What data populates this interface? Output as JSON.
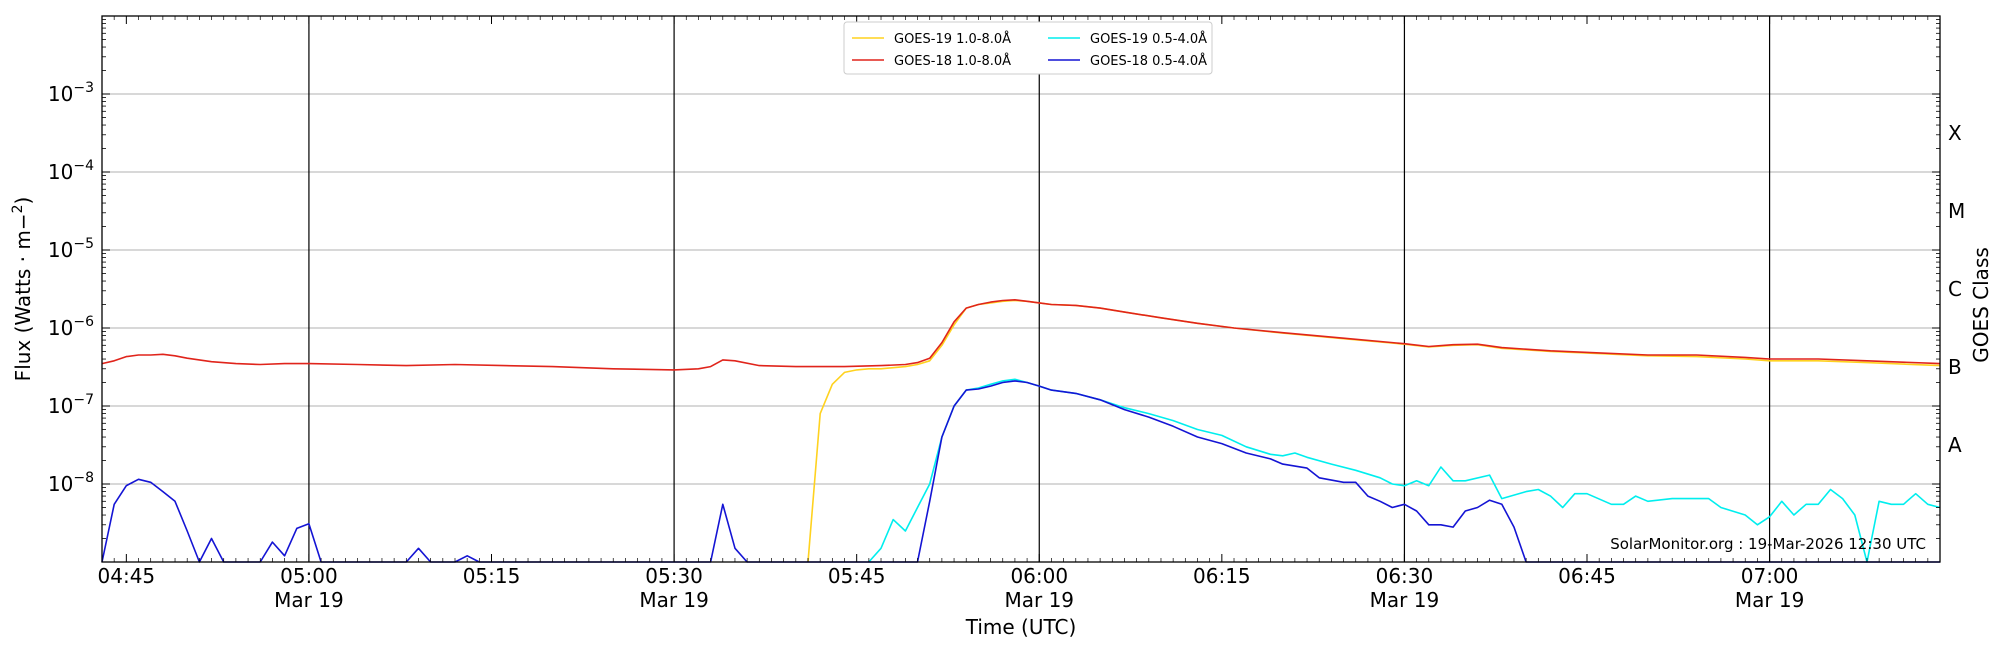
{
  "chart_data": {
    "type": "line",
    "xlabel": "Time (UTC)",
    "ylabel": "Flux (Watts · m⁻²)",
    "ylabel_right": "GOES Class",
    "yscale": "log",
    "xlim": [
      "04:43",
      "07:14"
    ],
    "ylim": [
      1e-09,
      0.01
    ],
    "grid": "horizontal",
    "legend_position": "top-center",
    "credit": "SolarMonitor.org : 19-Mar-2026 12:30 UTC",
    "x_ticks": [
      {
        "time": "04:45",
        "label": "04:45",
        "date": ""
      },
      {
        "time": "05:00",
        "label": "05:00",
        "date": "Mar 19"
      },
      {
        "time": "05:15",
        "label": "05:15",
        "date": ""
      },
      {
        "time": "05:30",
        "label": "05:30",
        "date": "Mar 19"
      },
      {
        "time": "05:45",
        "label": "05:45",
        "date": ""
      },
      {
        "time": "06:00",
        "label": "06:00",
        "date": "Mar 19"
      },
      {
        "time": "06:15",
        "label": "06:15",
        "date": ""
      },
      {
        "time": "06:30",
        "label": "06:30",
        "date": "Mar 19"
      },
      {
        "time": "06:45",
        "label": "06:45",
        "date": ""
      },
      {
        "time": "07:00",
        "label": "07:00",
        "date": "Mar 19"
      }
    ],
    "vlines": [
      "05:00",
      "05:30",
      "06:00",
      "06:30",
      "07:00"
    ],
    "y_ticks": [
      {
        "value": 1e-08,
        "base": "10",
        "exp": "−8"
      },
      {
        "value": 1e-07,
        "base": "10",
        "exp": "−7"
      },
      {
        "value": 1e-06,
        "base": "10",
        "exp": "−6"
      },
      {
        "value": 1e-05,
        "base": "10",
        "exp": "−5"
      },
      {
        "value": 0.0001,
        "base": "10",
        "exp": "−4"
      },
      {
        "value": 0.001,
        "base": "10",
        "exp": "−3"
      }
    ],
    "goes_classes": [
      {
        "label": "A",
        "value": 3.16e-08
      },
      {
        "label": "B",
        "value": 3.16e-07
      },
      {
        "label": "C",
        "value": 3.16e-06
      },
      {
        "label": "M",
        "value": 3.16e-05
      },
      {
        "label": "X",
        "value": 0.000316
      }
    ],
    "series": [
      {
        "name": "GOES-19 1.0-8.0Å",
        "color": "#ffd21f",
        "points": [
          [
            "05:41",
            1e-09
          ],
          [
            "05:42",
            8e-08
          ],
          [
            "05:43",
            1.9e-07
          ],
          [
            "05:44",
            2.7e-07
          ],
          [
            "05:45",
            2.9e-07
          ],
          [
            "05:46",
            3e-07
          ],
          [
            "05:47",
            3e-07
          ],
          [
            "05:48",
            3.1e-07
          ],
          [
            "05:49",
            3.2e-07
          ],
          [
            "05:50",
            3.4e-07
          ],
          [
            "05:51",
            3.8e-07
          ],
          [
            "05:52",
            6e-07
          ],
          [
            "05:53",
            1.1e-06
          ],
          [
            "05:54",
            1.8e-06
          ],
          [
            "05:55",
            2e-06
          ],
          [
            "05:56",
            2.1e-06
          ],
          [
            "05:57",
            2.2e-06
          ],
          [
            "05:58",
            2.25e-06
          ],
          [
            "05:59",
            2.2e-06
          ],
          [
            "06:00",
            2.1e-06
          ],
          [
            "06:01",
            2e-06
          ],
          [
            "06:03",
            1.95e-06
          ],
          [
            "06:05",
            1.8e-06
          ],
          [
            "06:07",
            1.6e-06
          ],
          [
            "06:10",
            1.35e-06
          ],
          [
            "06:13",
            1.15e-06
          ],
          [
            "06:16",
            1e-06
          ],
          [
            "06:20",
            8.6e-07
          ],
          [
            "06:25",
            7.3e-07
          ],
          [
            "06:30",
            6.2e-07
          ],
          [
            "06:32",
            5.7e-07
          ],
          [
            "06:34",
            6e-07
          ],
          [
            "06:36",
            6.1e-07
          ],
          [
            "06:38",
            5.5e-07
          ],
          [
            "06:42",
            5e-07
          ],
          [
            "06:46",
            4.7e-07
          ],
          [
            "06:50",
            4.4e-07
          ],
          [
            "06:54",
            4.3e-07
          ],
          [
            "06:58",
            4e-07
          ],
          [
            "07:00",
            3.8e-07
          ],
          [
            "07:04",
            3.8e-07
          ],
          [
            "07:08",
            3.6e-07
          ],
          [
            "07:14",
            3.3e-07
          ]
        ]
      },
      {
        "name": "GOES-18 1.0-8.0Å",
        "color": "#e0241b",
        "points": [
          [
            "04:43",
            3.5e-07
          ],
          [
            "04:44",
            3.8e-07
          ],
          [
            "04:45",
            4.3e-07
          ],
          [
            "04:46",
            4.5e-07
          ],
          [
            "04:47",
            4.5e-07
          ],
          [
            "04:48",
            4.6e-07
          ],
          [
            "04:49",
            4.4e-07
          ],
          [
            "04:50",
            4.1e-07
          ],
          [
            "04:52",
            3.7e-07
          ],
          [
            "04:54",
            3.5e-07
          ],
          [
            "04:56",
            3.4e-07
          ],
          [
            "04:58",
            3.5e-07
          ],
          [
            "05:00",
            3.5e-07
          ],
          [
            "05:04",
            3.4e-07
          ],
          [
            "05:08",
            3.3e-07
          ],
          [
            "05:12",
            3.4e-07
          ],
          [
            "05:16",
            3.3e-07
          ],
          [
            "05:20",
            3.2e-07
          ],
          [
            "05:25",
            3e-07
          ],
          [
            "05:30",
            2.9e-07
          ],
          [
            "05:32",
            3e-07
          ],
          [
            "05:33",
            3.2e-07
          ],
          [
            "05:34",
            3.9e-07
          ],
          [
            "05:35",
            3.8e-07
          ],
          [
            "05:37",
            3.3e-07
          ],
          [
            "05:40",
            3.2e-07
          ],
          [
            "05:44",
            3.2e-07
          ],
          [
            "05:47",
            3.3e-07
          ],
          [
            "05:49",
            3.4e-07
          ],
          [
            "05:50",
            3.6e-07
          ],
          [
            "05:51",
            4.1e-07
          ],
          [
            "05:52",
            6.5e-07
          ],
          [
            "05:53",
            1.2e-06
          ],
          [
            "05:54",
            1.8e-06
          ],
          [
            "05:55",
            2e-06
          ],
          [
            "05:56",
            2.15e-06
          ],
          [
            "05:57",
            2.25e-06
          ],
          [
            "05:58",
            2.3e-06
          ],
          [
            "05:59",
            2.2e-06
          ],
          [
            "06:00",
            2.1e-06
          ],
          [
            "06:01",
            2e-06
          ],
          [
            "06:03",
            1.95e-06
          ],
          [
            "06:05",
            1.8e-06
          ],
          [
            "06:07",
            1.6e-06
          ],
          [
            "06:10",
            1.35e-06
          ],
          [
            "06:13",
            1.15e-06
          ],
          [
            "06:16",
            1e-06
          ],
          [
            "06:20",
            8.7e-07
          ],
          [
            "06:25",
            7.4e-07
          ],
          [
            "06:30",
            6.3e-07
          ],
          [
            "06:32",
            5.8e-07
          ],
          [
            "06:34",
            6.1e-07
          ],
          [
            "06:36",
            6.2e-07
          ],
          [
            "06:38",
            5.6e-07
          ],
          [
            "06:42",
            5.1e-07
          ],
          [
            "06:46",
            4.8e-07
          ],
          [
            "06:50",
            4.5e-07
          ],
          [
            "06:54",
            4.5e-07
          ],
          [
            "06:58",
            4.2e-07
          ],
          [
            "07:00",
            4e-07
          ],
          [
            "07:04",
            4e-07
          ],
          [
            "07:08",
            3.8e-07
          ],
          [
            "07:14",
            3.5e-07
          ]
        ]
      },
      {
        "name": "GOES-19 0.5-4.0Å",
        "color": "#00eeee",
        "points": [
          [
            "05:46",
            1e-09
          ],
          [
            "05:47",
            1.5e-09
          ],
          [
            "05:48",
            3.5e-09
          ],
          [
            "05:49",
            2.5e-09
          ],
          [
            "05:50",
            5e-09
          ],
          [
            "05:51",
            1e-08
          ],
          [
            "05:52",
            4e-08
          ],
          [
            "05:53",
            1e-07
          ],
          [
            "05:54",
            1.6e-07
          ],
          [
            "05:55",
            1.7e-07
          ],
          [
            "05:56",
            1.9e-07
          ],
          [
            "05:57",
            2.1e-07
          ],
          [
            "05:58",
            2.2e-07
          ],
          [
            "05:59",
            2e-07
          ],
          [
            "06:00",
            1.8e-07
          ],
          [
            "06:01",
            1.6e-07
          ],
          [
            "06:03",
            1.45e-07
          ],
          [
            "06:05",
            1.2e-07
          ],
          [
            "06:07",
            9.5e-08
          ],
          [
            "06:09",
            8e-08
          ],
          [
            "06:11",
            6.5e-08
          ],
          [
            "06:13",
            5e-08
          ],
          [
            "06:15",
            4.2e-08
          ],
          [
            "06:17",
            3e-08
          ],
          [
            "06:19",
            2.4e-08
          ],
          [
            "06:20",
            2.3e-08
          ],
          [
            "06:21",
            2.5e-08
          ],
          [
            "06:22",
            2.2e-08
          ],
          [
            "06:24",
            1.8e-08
          ],
          [
            "06:26",
            1.5e-08
          ],
          [
            "06:28",
            1.2e-08
          ],
          [
            "06:29",
            1e-08
          ],
          [
            "06:30",
            9.5e-09
          ],
          [
            "06:31",
            1.1e-08
          ],
          [
            "06:32",
            9.5e-09
          ],
          [
            "06:33",
            1.65e-08
          ],
          [
            "06:34",
            1.1e-08
          ],
          [
            "06:35",
            1.1e-08
          ],
          [
            "06:37",
            1.3e-08
          ],
          [
            "06:38",
            6.5e-09
          ],
          [
            "06:40",
            8e-09
          ],
          [
            "06:41",
            8.5e-09
          ],
          [
            "06:42",
            7e-09
          ],
          [
            "06:43",
            5e-09
          ],
          [
            "06:44",
            7.5e-09
          ],
          [
            "06:45",
            7.5e-09
          ],
          [
            "06:47",
            5.5e-09
          ],
          [
            "06:48",
            5.5e-09
          ],
          [
            "06:49",
            7e-09
          ],
          [
            "06:50",
            6e-09
          ],
          [
            "06:52",
            6.5e-09
          ],
          [
            "06:55",
            6.5e-09
          ],
          [
            "06:56",
            5e-09
          ],
          [
            "06:58",
            4e-09
          ],
          [
            "06:59",
            3e-09
          ],
          [
            "07:00",
            3.8e-09
          ],
          [
            "07:01",
            6e-09
          ],
          [
            "07:02",
            4e-09
          ],
          [
            "07:03",
            5.5e-09
          ],
          [
            "07:04",
            5.5e-09
          ],
          [
            "07:05",
            8.5e-09
          ],
          [
            "07:06",
            6.5e-09
          ],
          [
            "07:07",
            4e-09
          ],
          [
            "07:08",
            1e-09
          ],
          [
            "07:09",
            6e-09
          ],
          [
            "07:10",
            5.5e-09
          ],
          [
            "07:11",
            5.5e-09
          ],
          [
            "07:12",
            7.5e-09
          ],
          [
            "07:13",
            5.5e-09
          ],
          [
            "07:14",
            5e-09
          ]
        ]
      },
      {
        "name": "GOES-18 0.5-4.0Å",
        "color": "#1414d4",
        "points": [
          [
            "04:43",
            1e-09
          ],
          [
            "04:44",
            5.5e-09
          ],
          [
            "04:45",
            9.5e-09
          ],
          [
            "04:46",
            1.15e-08
          ],
          [
            "04:47",
            1.05e-08
          ],
          [
            "04:48",
            8e-09
          ],
          [
            "04:49",
            6e-09
          ],
          [
            "04:50",
            2.5e-09
          ],
          [
            "04:51",
            1e-09
          ],
          [
            "04:52",
            2e-09
          ],
          [
            "04:53",
            1e-09
          ],
          [
            "04:56",
            1e-09
          ],
          [
            "04:57",
            1.8e-09
          ],
          [
            "04:58",
            1.2e-09
          ],
          [
            "04:59",
            2.7e-09
          ],
          [
            "05:00",
            3.1e-09
          ],
          [
            "05:01",
            1e-09
          ],
          [
            "05:08",
            1e-09
          ],
          [
            "05:09",
            1.5e-09
          ],
          [
            "05:10",
            1e-09
          ],
          [
            "05:12",
            1e-09
          ],
          [
            "05:13",
            1.2e-09
          ],
          [
            "05:14",
            1e-09
          ],
          [
            "05:33",
            1e-09
          ],
          [
            "05:34",
            5.5e-09
          ],
          [
            "05:35",
            1.5e-09
          ],
          [
            "05:36",
            1e-09
          ],
          [
            "05:50",
            1e-09
          ],
          [
            "05:51",
            6e-09
          ],
          [
            "05:52",
            4e-08
          ],
          [
            "05:53",
            1e-07
          ],
          [
            "05:54",
            1.6e-07
          ],
          [
            "05:55",
            1.65e-07
          ],
          [
            "05:56",
            1.8e-07
          ],
          [
            "05:57",
            2e-07
          ],
          [
            "05:58",
            2.1e-07
          ],
          [
            "05:59",
            2e-07
          ],
          [
            "06:00",
            1.8e-07
          ],
          [
            "06:01",
            1.6e-07
          ],
          [
            "06:03",
            1.45e-07
          ],
          [
            "06:05",
            1.2e-07
          ],
          [
            "06:07",
            9e-08
          ],
          [
            "06:09",
            7.2e-08
          ],
          [
            "06:11",
            5.5e-08
          ],
          [
            "06:13",
            4e-08
          ],
          [
            "06:15",
            3.3e-08
          ],
          [
            "06:17",
            2.5e-08
          ],
          [
            "06:19",
            2.1e-08
          ],
          [
            "06:20",
            1.8e-08
          ],
          [
            "06:22",
            1.6e-08
          ],
          [
            "06:23",
            1.2e-08
          ],
          [
            "06:25",
            1.05e-08
          ],
          [
            "06:26",
            1.05e-08
          ],
          [
            "06:27",
            7e-09
          ],
          [
            "06:28",
            6e-09
          ],
          [
            "06:29",
            5e-09
          ],
          [
            "06:30",
            5.5e-09
          ],
          [
            "06:31",
            4.5e-09
          ],
          [
            "06:32",
            3e-09
          ],
          [
            "06:33",
            3e-09
          ],
          [
            "06:34",
            2.8e-09
          ],
          [
            "06:35",
            4.5e-09
          ],
          [
            "06:36",
            5e-09
          ],
          [
            "06:37",
            6.2e-09
          ],
          [
            "06:38",
            5.5e-09
          ],
          [
            "06:39",
            2.8e-09
          ],
          [
            "06:40",
            1e-09
          ],
          [
            "07:14",
            1e-09
          ]
        ]
      }
    ]
  }
}
